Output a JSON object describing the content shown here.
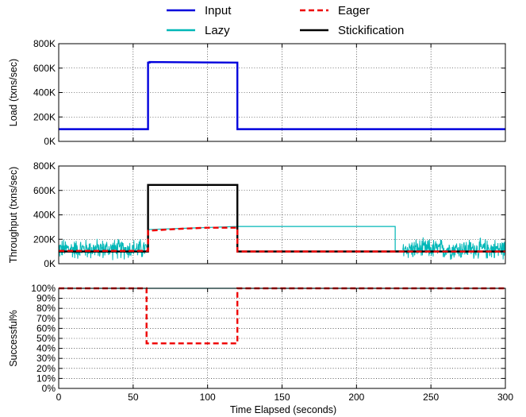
{
  "chart_data": {
    "type": "line",
    "legend": {
      "placement": "top",
      "entries": [
        {
          "name": "Input",
          "color": "#0000dd",
          "style": "solid"
        },
        {
          "name": "Eager",
          "color": "#ee0000",
          "style": "dashed"
        },
        {
          "name": "Lazy",
          "color": "#00b7b7",
          "style": "solid"
        },
        {
          "name": "Stickification",
          "color": "#000000",
          "style": "solid"
        }
      ]
    },
    "xlabel": "Time Elapsed (seconds)",
    "xlim": [
      0,
      300
    ],
    "xticks": [
      0,
      50,
      100,
      150,
      200,
      250,
      300
    ],
    "xtick_labels": [
      "0",
      "50",
      "100",
      "150",
      "200",
      "250",
      "300"
    ],
    "grid": true,
    "panels": [
      {
        "ylabel": "Load (txns/sec)",
        "ylim": [
          0,
          800000
        ],
        "yticks": [
          0,
          200000,
          400000,
          600000,
          800000
        ],
        "ytick_labels": [
          "0K",
          "200K",
          "400K",
          "600K",
          "800K"
        ],
        "series": [
          {
            "name": "Input",
            "color": "#0000dd",
            "style": "solid",
            "x": [
              0,
              60,
              60,
              61,
              61,
              120,
              120,
              300
            ],
            "y": [
              100000,
              100000,
              645000,
              645000,
              650000,
              645000,
              100000,
              100000
            ]
          }
        ]
      },
      {
        "ylabel": "Throughput (txns/sec)",
        "ylim": [
          0,
          800000
        ],
        "yticks": [
          0,
          200000,
          400000,
          600000,
          800000
        ],
        "ytick_labels": [
          "0K",
          "200K",
          "400K",
          "600K",
          "800K"
        ],
        "series": [
          {
            "name": "Lazy",
            "color": "#00b7b7",
            "style": "solid",
            "noisy_ranges": [
              [
                0,
                60
              ],
              [
                231,
                300
              ]
            ],
            "noise_center": 120000,
            "noise_amplitude": 100000,
            "x": [
              60,
              61,
              120,
              226,
              226,
              231
            ],
            "y": [
              270000,
              280000,
              305000,
              305000,
              105000,
              105000
            ]
          },
          {
            "name": "Stickification",
            "color": "#000000",
            "style": "solid",
            "x": [
              0,
              60,
              60,
              120,
              120,
              300
            ],
            "y": [
              100000,
              100000,
              645000,
              645000,
              100000,
              100000
            ]
          },
          {
            "name": "Eager",
            "color": "#ee0000",
            "style": "dashed",
            "x": [
              0,
              60,
              60,
              80,
              100,
              120,
              120,
              300
            ],
            "y": [
              105000,
              105000,
              270000,
              285000,
              295000,
              295000,
              100000,
              100000
            ]
          }
        ]
      },
      {
        "ylabel": "Successful%",
        "ylim": [
          0,
          100
        ],
        "yticks": [
          0,
          10,
          20,
          30,
          40,
          50,
          60,
          70,
          80,
          90,
          100
        ],
        "ytick_labels": [
          "0%",
          "10%",
          "20%",
          "30%",
          "40%",
          "50%",
          "60%",
          "70%",
          "80%",
          "90%",
          "100%"
        ],
        "yticks_minor_unlabeled": [
          10,
          30,
          50,
          70,
          90
        ],
        "series": [
          {
            "name": "Lazy",
            "color": "#00b7b7",
            "style": "solid",
            "x": [
              0,
              300
            ],
            "y": [
              100,
              100
            ]
          },
          {
            "name": "Eager",
            "color": "#ee0000",
            "style": "dashed",
            "x": [
              0,
              59,
              59,
              120,
              120,
              300
            ],
            "y": [
              100,
              100,
              45,
              45,
              100,
              100
            ]
          }
        ]
      }
    ]
  }
}
